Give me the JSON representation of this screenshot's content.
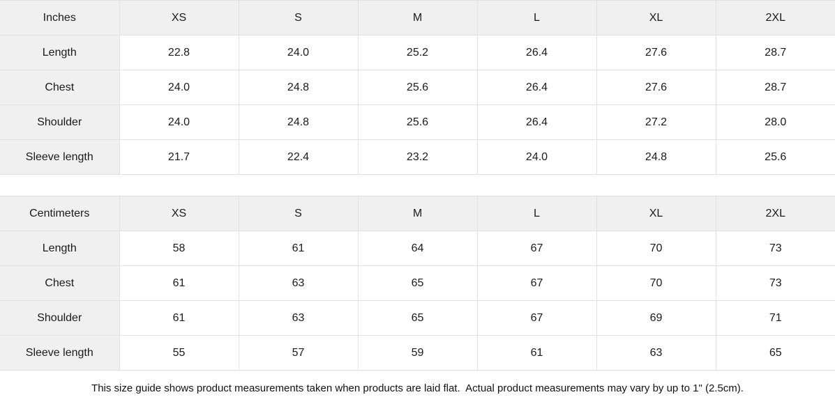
{
  "colors": {
    "header_bg": "#f0f0f0",
    "border": "#e1e1e1",
    "text": "#1a1a1a",
    "page_bg": "#ffffff"
  },
  "tables": [
    {
      "unit_label": "Inches",
      "sizes": [
        "XS",
        "S",
        "M",
        "L",
        "XL",
        "2XL"
      ],
      "rows": [
        {
          "label": "Length",
          "values": [
            "22.8",
            "24.0",
            "25.2",
            "26.4",
            "27.6",
            "28.7"
          ]
        },
        {
          "label": "Chest",
          "values": [
            "24.0",
            "24.8",
            "25.6",
            "26.4",
            "27.6",
            "28.7"
          ]
        },
        {
          "label": "Shoulder",
          "values": [
            "24.0",
            "24.8",
            "25.6",
            "26.4",
            "27.2",
            "28.0"
          ]
        },
        {
          "label": "Sleeve length",
          "values": [
            "21.7",
            "22.4",
            "23.2",
            "24.0",
            "24.8",
            "25.6"
          ]
        }
      ]
    },
    {
      "unit_label": "Centimeters",
      "sizes": [
        "XS",
        "S",
        "M",
        "L",
        "XL",
        "2XL"
      ],
      "rows": [
        {
          "label": "Length",
          "values": [
            "58",
            "61",
            "64",
            "67",
            "70",
            "73"
          ]
        },
        {
          "label": "Chest",
          "values": [
            "61",
            "63",
            "65",
            "67",
            "70",
            "73"
          ]
        },
        {
          "label": "Shoulder",
          "values": [
            "61",
            "63",
            "65",
            "67",
            "69",
            "71"
          ]
        },
        {
          "label": "Sleeve length",
          "values": [
            "55",
            "57",
            "59",
            "61",
            "63",
            "65"
          ]
        }
      ]
    }
  ],
  "footer": {
    "note": "This size guide shows product measurements taken when products are laid flat.  Actual product measurements may vary by up to 1\" (2.5cm)."
  }
}
